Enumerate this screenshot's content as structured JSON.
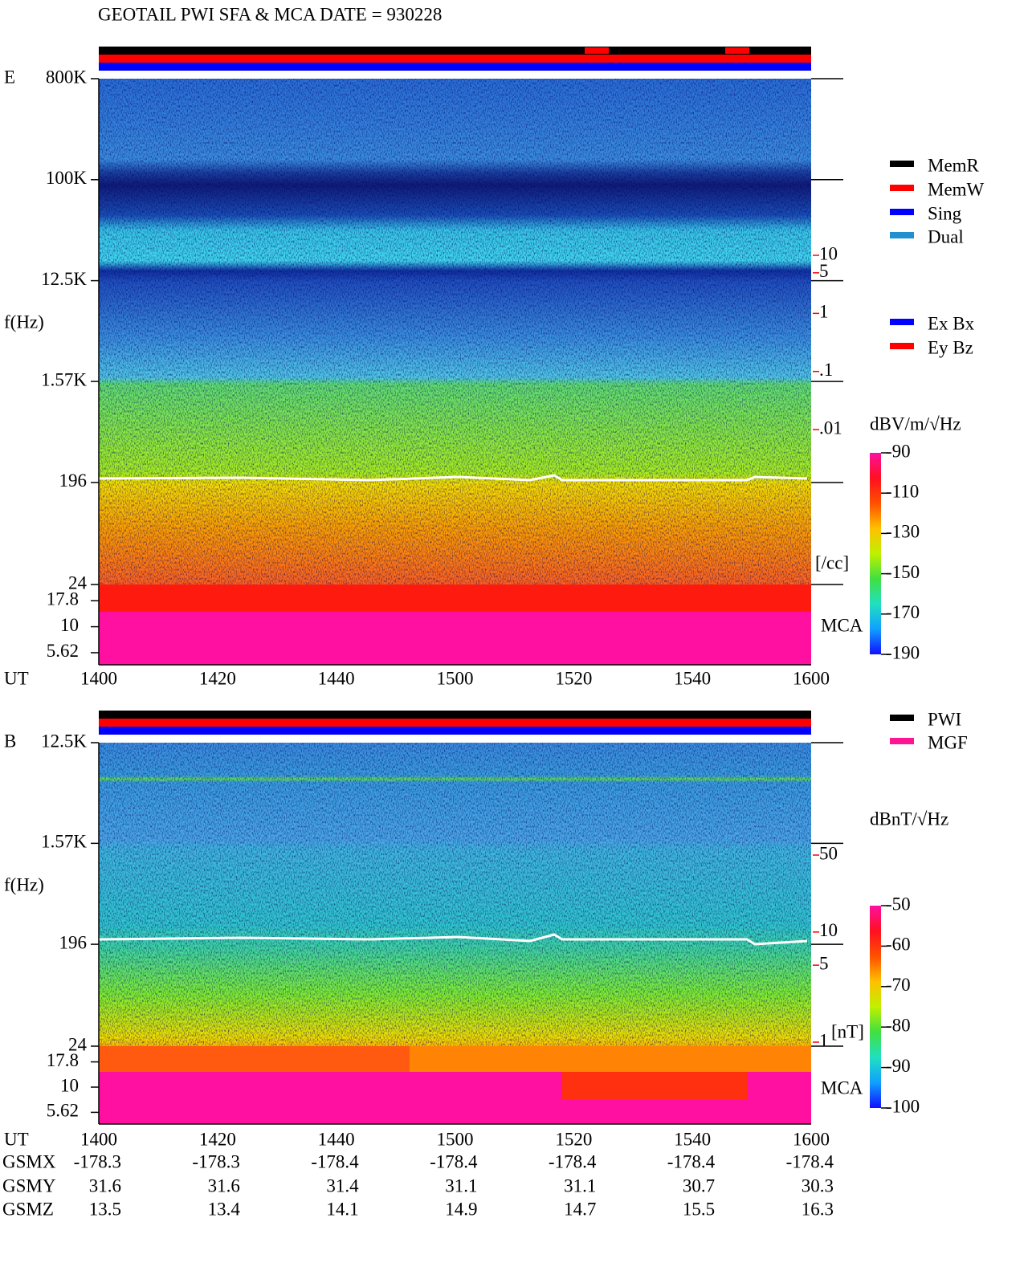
{
  "title": "GEOTAIL  PWI SFA & MCA   DATE = 930228",
  "chart_data": [
    {
      "type": "spectrogram",
      "panel_label": "E",
      "y_label": "f(Hz)",
      "x_label": "UT",
      "categories": [
        "1400",
        "1420",
        "1440",
        "1500",
        "1520",
        "1540",
        "1600"
      ],
      "log_y": true,
      "ylim": [
        24,
        800000
      ],
      "yticks": [
        {
          "value": 800000,
          "label": "800K"
        },
        {
          "value": 100000,
          "label": "100K"
        },
        {
          "value": 12500,
          "label": "12.5K"
        },
        {
          "value": 1570,
          "label": "1.57K"
        },
        196,
        24
      ],
      "mca_label": "MCA",
      "mca_ylim": [
        4.3,
        25.5
      ],
      "mca_yticks": [
        17.8,
        10,
        5.62
      ],
      "density_label": "[/cc]",
      "density_color": "#ff0000",
      "density_ylim": [
        0.01,
        10
      ],
      "density_ticks": [
        10,
        5,
        1,
        {
          "value": 0.1,
          "label": ".1"
        },
        {
          "value": 0.01,
          "label": ".01"
        }
      ],
      "colorbar_label": "dBV/m/√Hz",
      "colorbar_lim": [
        -190,
        -90
      ],
      "colorbar_ticks": [
        -90,
        -110,
        -130,
        -150,
        -170,
        -190
      ],
      "colormap": [
        "#1010ff",
        "#10a0ff",
        "#20e0c0",
        "#40e040",
        "#c0f000",
        "#ffc000",
        "#ff5000",
        "#ff1020",
        "#ff10a0"
      ],
      "status_legend": [
        {
          "name": "MemR",
          "color": "#000000"
        },
        {
          "name": "MemW",
          "color": "#ff0000"
        },
        {
          "name": "Sing",
          "color": "#0000ff"
        },
        {
          "name": "Dual",
          "color": "#2090d0"
        }
      ],
      "component_legend": [
        {
          "name": "Ex Bx",
          "color": "#0000ff"
        },
        {
          "name": "Ey Bz",
          "color": "#ff0000"
        }
      ]
    },
    {
      "type": "spectrogram",
      "panel_label": "B",
      "y_label": "f(Hz)",
      "x_label": "UT",
      "categories": [
        "1400",
        "1420",
        "1440",
        "1500",
        "1520",
        "1540",
        "1600"
      ],
      "log_y": true,
      "ylim": [
        24,
        12500
      ],
      "yticks": [
        {
          "value": 12500,
          "label": "12.5K"
        },
        {
          "value": 1570,
          "label": "1.57K"
        },
        196,
        24
      ],
      "mca_label": "MCA",
      "mca_ylim": [
        4.3,
        25.5
      ],
      "mca_yticks": [
        17.8,
        10,
        5.62
      ],
      "density_label": "[nT]",
      "density_color": "#ff0000",
      "density_ylim": [
        1,
        50
      ],
      "density_ticks": [
        50,
        10,
        5,
        1
      ],
      "colorbar_label": "dBnT/√Hz",
      "colorbar_lim": [
        -100,
        -50
      ],
      "colorbar_ticks": [
        -50,
        -60,
        -70,
        -80,
        -90,
        -100
      ],
      "colormap": [
        "#1010ff",
        "#10a0ff",
        "#20e0c0",
        "#40e040",
        "#c0f000",
        "#ffc000",
        "#ff5000",
        "#ff1020",
        "#ff10a0"
      ],
      "status_legend": [
        {
          "name": "PWI",
          "color": "#000000"
        },
        {
          "name": "MGF",
          "color": "#ff1493"
        }
      ]
    }
  ],
  "orbit": [
    {
      "label": "GSMX",
      "values": [
        -178.3,
        -178.3,
        -178.4,
        -178.4,
        -178.4,
        -178.4,
        -178.4
      ]
    },
    {
      "label": "GSMY",
      "values": [
        31.6,
        31.6,
        31.4,
        31.1,
        31.1,
        30.7,
        30.3
      ]
    },
    {
      "label": "GSMZ",
      "values": [
        13.5,
        13.4,
        14.1,
        14.9,
        14.7,
        15.5,
        16.3
      ]
    }
  ]
}
